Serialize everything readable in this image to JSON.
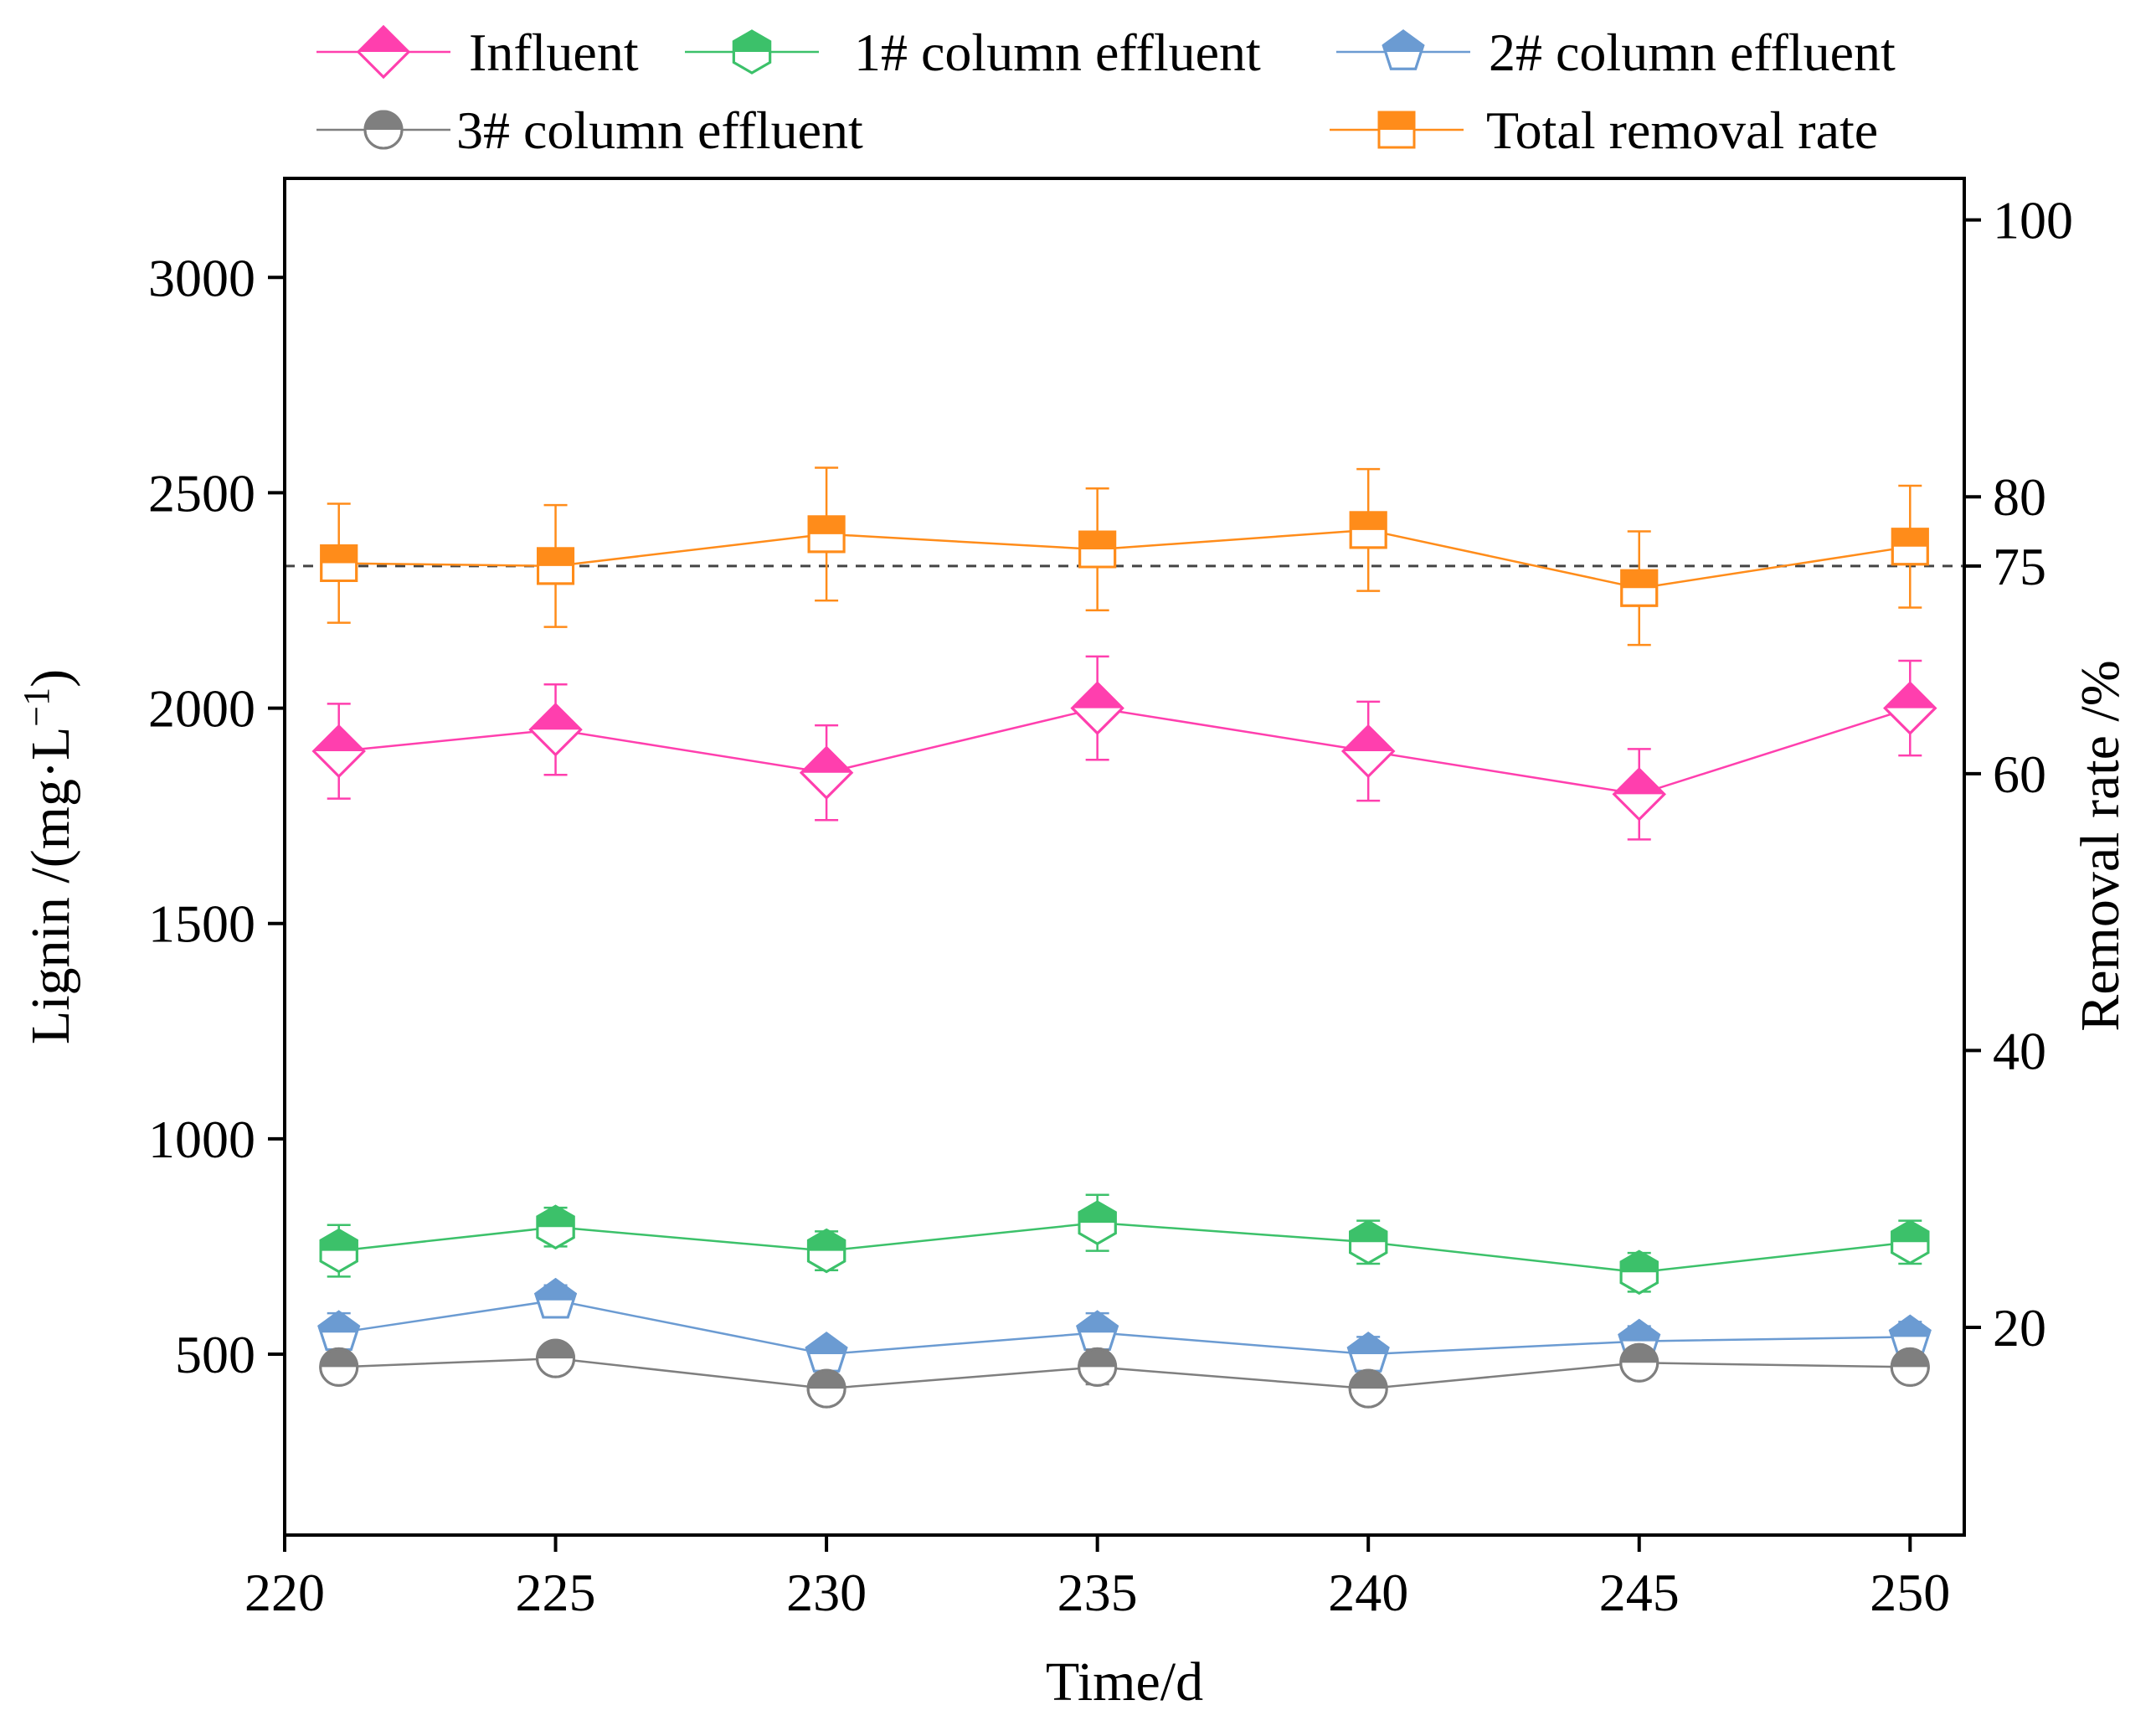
{
  "chart_data": {
    "type": "line",
    "xlabel": "Time/d",
    "ylabel_left": "Lignin /(mg·L",
    "ylabel_left_sup": "−1",
    "ylabel_left_close": ")",
    "ylabel_right": "Removal rate /%",
    "x": [
      221,
      225,
      230,
      235,
      240,
      245,
      250
    ],
    "xlim": [
      220,
      251
    ],
    "xticks": [
      220,
      225,
      230,
      235,
      240,
      245,
      250
    ],
    "ylim_left": [
      80,
      3230
    ],
    "yticks_left": [
      500,
      1000,
      1500,
      2000,
      2500,
      3000
    ],
    "ylim_right": [
      5,
      103
    ],
    "yticks_right": [
      20,
      40,
      60,
      75,
      80,
      100
    ],
    "reference_line": {
      "axis": "right",
      "value": 75,
      "style": "dashed"
    },
    "series": [
      {
        "name": "Influent",
        "axis": "left",
        "color": "#ff3fae",
        "marker": "diamond",
        "values": [
          1900,
          1950,
          1850,
          2000,
          1900,
          1800,
          2000
        ],
        "errors": [
          110,
          105,
          110,
          120,
          115,
          105,
          110
        ]
      },
      {
        "name": "1# column effluent",
        "axis": "left",
        "color": "#3cc16a",
        "marker": "hexagon",
        "values": [
          740,
          795,
          740,
          805,
          760,
          690,
          760
        ],
        "errors": [
          60,
          45,
          45,
          65,
          50,
          45,
          50
        ]
      },
      {
        "name": "2# column effluent",
        "axis": "left",
        "color": "#6b9bd2",
        "marker": "pentagon",
        "values": [
          550,
          625,
          500,
          550,
          500,
          530,
          540
        ],
        "errors": [
          45,
          35,
          30,
          45,
          40,
          35,
          35
        ]
      },
      {
        "name": "3# column effluent",
        "axis": "left",
        "color": "#7f7f7f",
        "marker": "circle",
        "values": [
          470,
          490,
          420,
          470,
          420,
          480,
          470
        ],
        "errors": [
          35,
          30,
          25,
          40,
          30,
          30,
          35
        ]
      },
      {
        "name": "Total removal rate",
        "axis": "right",
        "color": "#ff8c1a",
        "marker": "square",
        "values": [
          75.2,
          75.0,
          77.3,
          76.2,
          77.6,
          73.4,
          76.4
        ],
        "errors": [
          4.3,
          4.4,
          4.8,
          4.4,
          4.4,
          4.1,
          4.4
        ]
      }
    ]
  }
}
